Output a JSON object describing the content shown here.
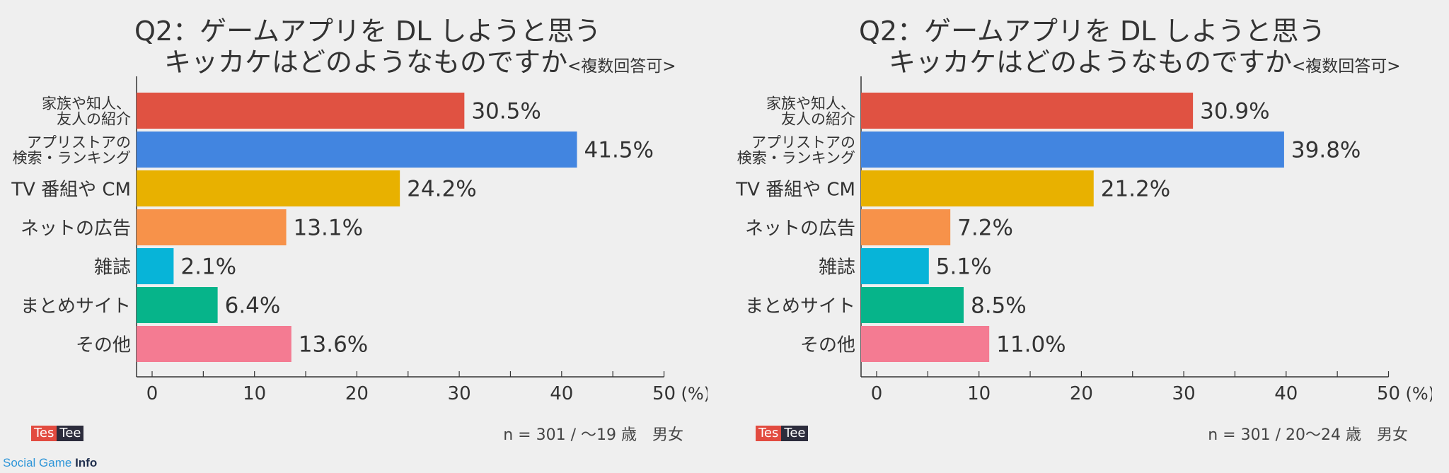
{
  "panels": [
    {
      "title_line1": "Q2：ゲームアプリを DL しようと思う",
      "title_line2": "キッカケはどのようなものですか",
      "title_note": "<複数回答可>",
      "footer": "n = 301 / 〜19 歳　男女",
      "logo": {
        "part1": "Tes",
        "part2": "Tee"
      }
    },
    {
      "title_line1": "Q2：ゲームアプリを DL しようと思う",
      "title_line2": "キッカケはどのようなものですか",
      "title_note": "<複数回答可>",
      "footer": "n = 301 / 20〜24 歳　男女",
      "logo": {
        "part1": "Tes",
        "part2": "Tee"
      }
    }
  ],
  "watermark": {
    "part1": "Social Game",
    "part2": "Info"
  },
  "chart_data": [
    {
      "type": "bar",
      "orientation": "horizontal",
      "categories": [
        "家族や知人、\n友人の紹介",
        "アプリストアの\n検索・ランキング",
        "TV 番組や CM",
        "ネットの広告",
        "雑誌",
        "まとめサイト",
        "その他"
      ],
      "values": [
        30.5,
        41.5,
        24.2,
        13.1,
        2.1,
        6.4,
        13.6
      ],
      "value_labels": [
        "30.5%",
        "41.5%",
        "24.2%",
        "13.1%",
        "2.1%",
        "6.4%",
        "13.6%"
      ],
      "colors": [
        "#e05242",
        "#4285e0",
        "#e8b100",
        "#f7924a",
        "#07b4d8",
        "#06b48a",
        "#f47b92"
      ],
      "xlim": [
        0,
        50
      ],
      "xticks": [
        0,
        10,
        20,
        30,
        40,
        50
      ],
      "xunit": "(%)"
    },
    {
      "type": "bar",
      "orientation": "horizontal",
      "categories": [
        "家族や知人、\n友人の紹介",
        "アプリストアの\n検索・ランキング",
        "TV 番組や CM",
        "ネットの広告",
        "雑誌",
        "まとめサイト",
        "その他"
      ],
      "values": [
        30.9,
        39.8,
        21.2,
        7.2,
        5.1,
        8.5,
        11.0
      ],
      "value_labels": [
        "30.9%",
        "39.8%",
        "21.2%",
        "7.2%",
        "5.1%",
        "8.5%",
        "11.0%"
      ],
      "colors": [
        "#e05242",
        "#4285e0",
        "#e8b100",
        "#f7924a",
        "#07b4d8",
        "#06b48a",
        "#f47b92"
      ],
      "xlim": [
        0,
        50
      ],
      "xticks": [
        0,
        10,
        20,
        30,
        40,
        50
      ],
      "xunit": "(%)"
    }
  ]
}
